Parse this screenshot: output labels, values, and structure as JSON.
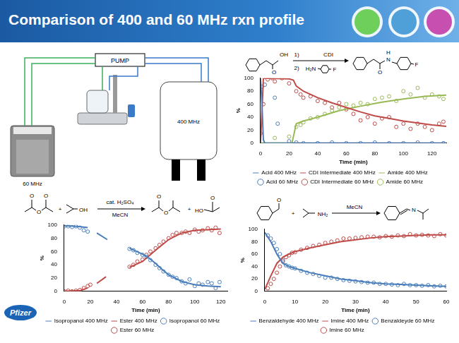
{
  "title": "Comparison of 400 and 60 MHz rxn profile",
  "diagram": {
    "pump": "PUMP",
    "left_instrument": "60 MHz",
    "right_instrument": "400 MHz"
  },
  "logo": "Pfizer",
  "chart_data": [
    {
      "type": "scatter",
      "reaction": [
        "O",
        "OH",
        "1)",
        "CDI",
        "2)",
        "H₂N",
        "F",
        "O",
        "N",
        "H",
        "F"
      ],
      "x_label": "Time (min)",
      "y_label": "%",
      "xlim": [
        0,
        130
      ],
      "xticks": [
        0,
        20,
        40,
        60,
        80,
        100,
        120
      ],
      "ylim": [
        0,
        100
      ],
      "yticks": [
        0,
        20,
        40,
        60,
        80,
        100
      ],
      "grid": false,
      "legend": "bottom",
      "series": [
        {
          "name": "Acid 400 MHz",
          "color": "#4a7ebb",
          "marker": "none",
          "line_style": "solid",
          "x": [
            0,
            1,
            2,
            3,
            130
          ],
          "values": [
            100,
            60,
            5,
            0,
            0
          ]
        },
        {
          "name": "CDI Intermediate 400 MHz",
          "color": "#be4b48",
          "marker": "none",
          "line_style": "solid",
          "x": [
            0,
            2,
            20,
            23,
            25,
            30,
            40,
            50,
            60,
            70,
            80,
            90,
            100,
            110,
            120,
            130
          ],
          "values": [
            0,
            100,
            99,
            97,
            88,
            80,
            70,
            62,
            55,
            48,
            42,
            38,
            34,
            31,
            28,
            26
          ]
        },
        {
          "name": "Amide 400 MHz",
          "color": "#98b954",
          "marker": "none",
          "line_style": "solid",
          "x": [
            0,
            22,
            23,
            25,
            30,
            40,
            55,
            70,
            85,
            100,
            115,
            130
          ],
          "values": [
            0,
            0,
            10,
            30,
            34,
            40,
            50,
            57,
            63,
            68,
            72,
            74
          ]
        },
        {
          "name": "Acid 60 MHz",
          "color": "#4a7ebb",
          "marker": "circle",
          "line_style": "none",
          "x": [
            1,
            3,
            10,
            12,
            20,
            25,
            30,
            40,
            50,
            60,
            70,
            80,
            90,
            100,
            110,
            120,
            128
          ],
          "values": [
            87,
            90,
            70,
            30,
            3,
            1,
            0,
            0,
            1,
            0,
            0,
            1,
            0,
            0,
            1,
            0,
            0
          ]
        },
        {
          "name": "CDI Intermediate 60 MHz",
          "color": "#be4b48",
          "marker": "circle",
          "line_style": "none",
          "x": [
            0,
            2,
            5,
            8,
            10,
            15,
            20,
            25,
            28,
            30,
            35,
            40,
            45,
            50,
            55,
            60,
            65,
            70,
            75,
            80,
            85,
            90,
            95,
            100,
            105,
            110,
            115,
            120,
            125,
            128
          ],
          "values": [
            15,
            60,
            98,
            100,
            95,
            100,
            92,
            80,
            75,
            70,
            72,
            65,
            62,
            55,
            62,
            52,
            45,
            35,
            40,
            30,
            38,
            40,
            25,
            30,
            22,
            30,
            25,
            20,
            30,
            33
          ]
        },
        {
          "name": "Amide 60 MHz",
          "color": "#98b954",
          "marker": "circle",
          "line_style": "none",
          "x": [
            10,
            20,
            25,
            28,
            30,
            35,
            40,
            45,
            50,
            55,
            60,
            65,
            70,
            75,
            80,
            85,
            90,
            95,
            100,
            105,
            110,
            115,
            120,
            125,
            128
          ],
          "values": [
            8,
            10,
            25,
            28,
            32,
            38,
            40,
            45,
            50,
            55,
            60,
            58,
            62,
            60,
            68,
            70,
            72,
            65,
            80,
            75,
            85,
            70,
            75,
            72,
            68
          ]
        }
      ]
    },
    {
      "type": "scatter",
      "reaction": [
        "O",
        "O",
        "O",
        "+",
        "OH",
        "cat. H₂SO₄",
        "MeCN",
        "O",
        "O",
        "+",
        "HO",
        "O"
      ],
      "x_label": "Time (min)",
      "y_label": "%",
      "xlim": [
        0,
        125
      ],
      "xticks": [
        0,
        20,
        40,
        60,
        80,
        100,
        120
      ],
      "ylim": [
        0,
        100
      ],
      "yticks": [
        0,
        20,
        40,
        60,
        80,
        100
      ],
      "grid": false,
      "legend": "bottom",
      "series": [
        {
          "name": "Isopropanol 400 MHz",
          "color": "#4a7ebb",
          "marker": "none",
          "line_style": "solid",
          "x": [
            0,
            10,
            18,
            21,
            25,
            33,
            40,
            50,
            60,
            65,
            70,
            75,
            80,
            90,
            100,
            110,
            120
          ],
          "values": [
            99,
            98,
            96,
            null,
            88,
            78,
            null,
            65,
            56,
            50,
            42,
            33,
            25,
            15,
            10,
            8,
            7
          ]
        },
        {
          "name": "Ester 400 MHz",
          "color": "#be4b48",
          "marker": "none",
          "line_style": "solid",
          "x": [
            0,
            12,
            18,
            21,
            25,
            32,
            40,
            50,
            60,
            70,
            80,
            90,
            100,
            110,
            120
          ],
          "values": [
            0,
            1,
            5,
            null,
            12,
            22,
            null,
            36,
            45,
            62,
            78,
            88,
            92,
            93,
            94
          ]
        },
        {
          "name": "Isopropanol 60 MHz",
          "color": "#4a7ebb",
          "marker": "circle",
          "line_style": "none",
          "x": [
            0,
            3,
            6,
            9,
            12,
            15,
            18,
            50,
            53,
            56,
            60,
            63,
            66,
            70,
            73,
            76,
            80,
            83,
            86,
            90,
            93,
            96,
            100,
            103,
            106,
            110,
            113,
            116,
            119
          ],
          "values": [
            98,
            98,
            97,
            98,
            96,
            92,
            90,
            64,
            62,
            58,
            55,
            52,
            47,
            40,
            35,
            30,
            25,
            22,
            20,
            15,
            12,
            18,
            8,
            12,
            10,
            14,
            12,
            5,
            14
          ]
        },
        {
          "name": "Ester 60 MHz",
          "color": "#be4b48",
          "marker": "circle",
          "line_style": "none",
          "x": [
            0,
            3,
            6,
            9,
            12,
            15,
            18,
            20,
            50,
            53,
            56,
            60,
            63,
            66,
            70,
            73,
            76,
            80,
            83,
            86,
            90,
            93,
            96,
            100,
            103,
            106,
            110,
            113,
            116,
            119
          ],
          "values": [
            0,
            1,
            0,
            1,
            2,
            5,
            8,
            10,
            37,
            40,
            45,
            48,
            55,
            60,
            65,
            70,
            75,
            80,
            85,
            88,
            88,
            90,
            88,
            93,
            90,
            92,
            95,
            92,
            96,
            88
          ]
        }
      ]
    },
    {
      "type": "scatter",
      "reaction": [
        "O",
        "+",
        "NH₂",
        "MeCN",
        "N"
      ],
      "x_label": "Time (min)",
      "y_label": "%",
      "xlim": [
        0,
        60
      ],
      "xticks": [
        0,
        10,
        20,
        30,
        40,
        50,
        60
      ],
      "ylim": [
        0,
        100
      ],
      "yticks": [
        0,
        20,
        40,
        60,
        80,
        100
      ],
      "grid": false,
      "legend": "bottom",
      "series": [
        {
          "name": "Benzaldehyde 400 MHz",
          "color": "#4a7ebb",
          "marker": "none",
          "line_style": "solid",
          "x": [
            0,
            2,
            4,
            6,
            8,
            10,
            15,
            20,
            25,
            30,
            35,
            40,
            45,
            50,
            55,
            60
          ],
          "values": [
            95,
            80,
            60,
            45,
            40,
            37,
            30,
            25,
            20,
            17,
            14,
            12,
            11,
            10,
            9,
            8
          ]
        },
        {
          "name": "Imine 400 MHz",
          "color": "#be4b48",
          "marker": "none",
          "line_style": "solid",
          "x": [
            0,
            2,
            4,
            6,
            8,
            10,
            15,
            20,
            25,
            30,
            35,
            40,
            45,
            50,
            55,
            60
          ],
          "values": [
            3,
            25,
            45,
            55,
            60,
            64,
            70,
            75,
            80,
            83,
            86,
            88,
            89,
            90,
            91,
            91
          ]
        },
        {
          "name": "Benzaldeyde 60 MHz",
          "color": "#4a7ebb",
          "marker": "circle",
          "line_style": "none",
          "x": [
            1,
            2,
            3,
            4,
            5,
            6,
            7,
            8,
            9,
            10,
            12,
            14,
            16,
            18,
            20,
            22,
            24,
            26,
            28,
            30,
            32,
            34,
            36,
            38,
            40,
            42,
            44,
            46,
            48,
            50,
            52,
            54,
            56,
            58,
            60
          ],
          "values": [
            90,
            85,
            78,
            68,
            60,
            50,
            42,
            40,
            38,
            37,
            33,
            30,
            28,
            25,
            22,
            22,
            20,
            18,
            17,
            16,
            15,
            14,
            14,
            12,
            12,
            11,
            10,
            12,
            10,
            10,
            9,
            10,
            8,
            9,
            8
          ]
        },
        {
          "name": "Imine 60 MHz",
          "color": "#be4b48",
          "marker": "circle",
          "line_style": "none",
          "x": [
            1,
            2,
            3,
            4,
            5,
            6,
            7,
            8,
            9,
            10,
            12,
            14,
            16,
            18,
            20,
            22,
            24,
            26,
            28,
            30,
            32,
            34,
            36,
            38,
            40,
            42,
            44,
            46,
            48,
            50,
            52,
            54,
            56,
            58,
            60
          ],
          "values": [
            5,
            12,
            20,
            30,
            40,
            48,
            55,
            58,
            62,
            63,
            67,
            70,
            73,
            75,
            78,
            80,
            82,
            85,
            85,
            86,
            87,
            88,
            88,
            87,
            89,
            88,
            90,
            89,
            92,
            90,
            91,
            90,
            89,
            92,
            90
          ]
        }
      ]
    }
  ]
}
